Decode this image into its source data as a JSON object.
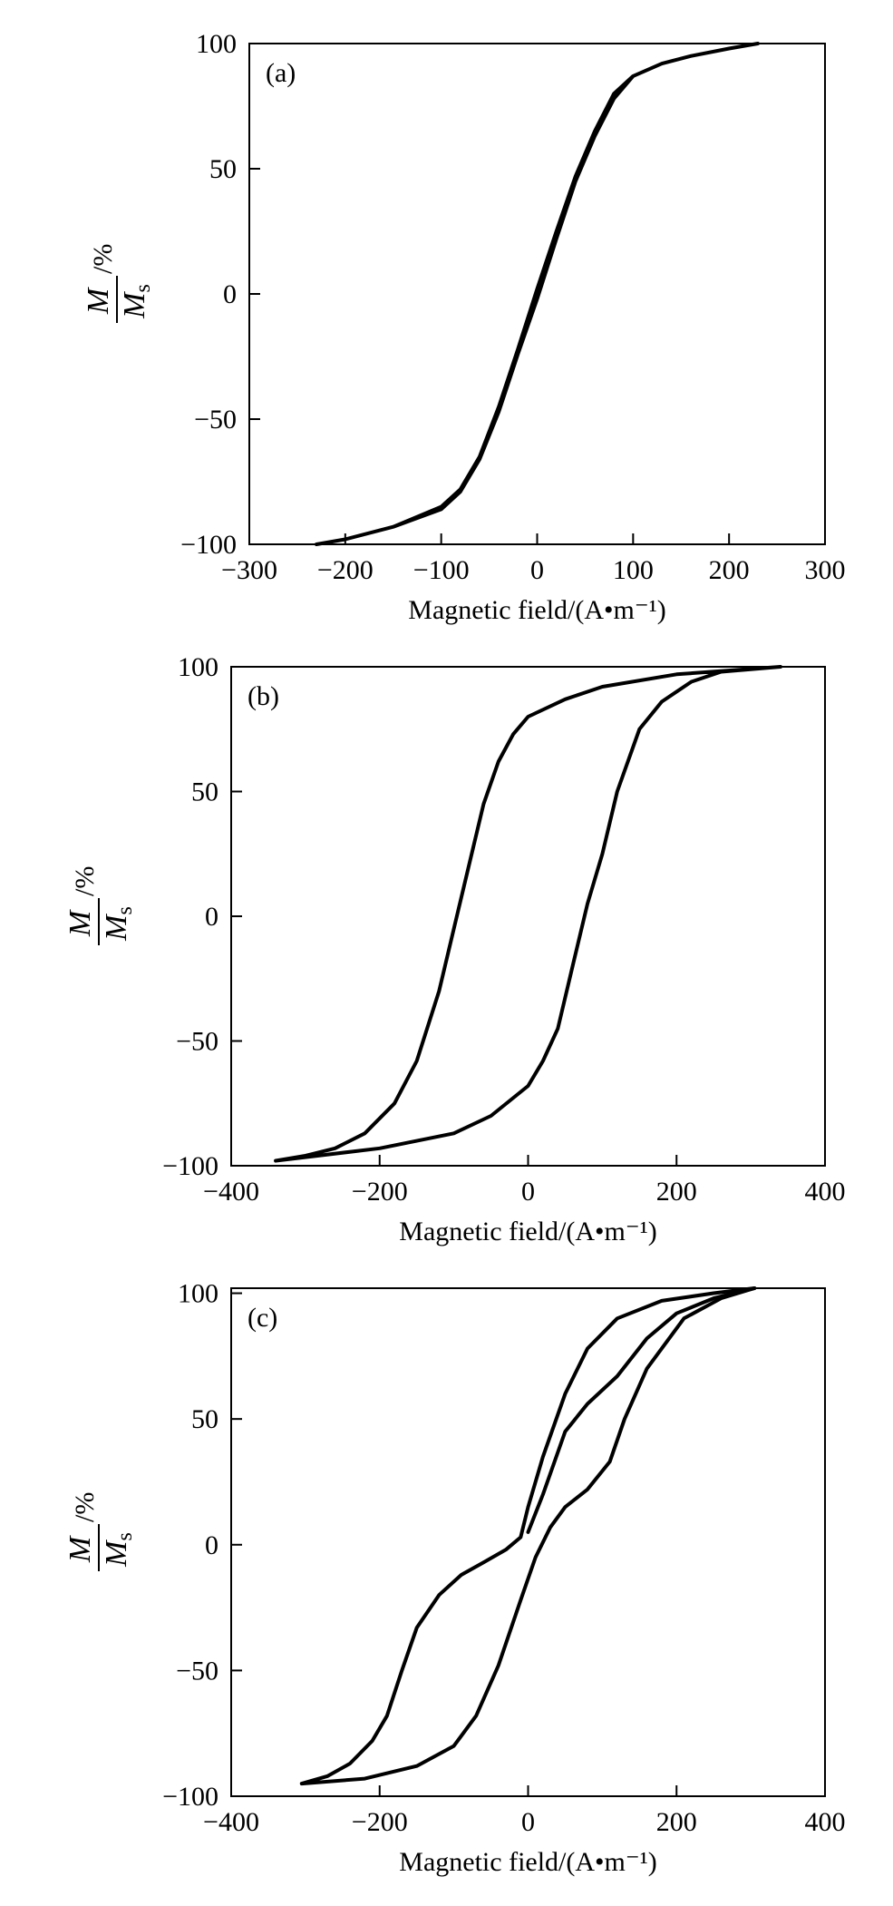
{
  "chart_data": [
    {
      "type": "line",
      "panel_label": "(a)",
      "xlabel": "Magnetic field/(A•m⁻¹)",
      "ylabel": "M/Ms /%",
      "xlim": [
        -300,
        300
      ],
      "ylim": [
        -100,
        100
      ],
      "x_ticks": [
        -300,
        -200,
        -100,
        0,
        100,
        200,
        300
      ],
      "y_ticks": [
        -100,
        -50,
        0,
        50,
        100
      ],
      "x_tick_labels": [
        "−300",
        "−200",
        "−100",
        "0",
        "100",
        "200",
        "300"
      ],
      "y_tick_labels": [
        "−100",
        "−50",
        "0",
        "50",
        "100"
      ],
      "grid": false,
      "series": [
        {
          "points": [
            [
              -230,
              -100
            ],
            [
              -200,
              -98
            ],
            [
              -150,
              -93
            ],
            [
              -100,
              -85
            ],
            [
              -80,
              -78
            ],
            [
              -60,
              -65
            ],
            [
              -40,
              -45
            ],
            [
              -20,
              -22
            ],
            [
              0,
              2
            ],
            [
              20,
              25
            ],
            [
              40,
              47
            ],
            [
              60,
              65
            ],
            [
              80,
              80
            ],
            [
              100,
              87
            ],
            [
              130,
              92
            ],
            [
              160,
              95
            ],
            [
              200,
              98
            ],
            [
              230,
              100
            ],
            [
              200,
              98
            ],
            [
              160,
              95
            ],
            [
              130,
              92
            ],
            [
              100,
              87
            ],
            [
              80,
              78
            ],
            [
              60,
              63
            ],
            [
              40,
              45
            ],
            [
              20,
              22
            ],
            [
              0,
              -2
            ],
            [
              -20,
              -24
            ],
            [
              -40,
              -47
            ],
            [
              -60,
              -66
            ],
            [
              -80,
              -79
            ],
            [
              -100,
              -86
            ],
            [
              -150,
              -93
            ],
            [
              -200,
              -98
            ],
            [
              -230,
              -100
            ]
          ]
        }
      ]
    },
    {
      "type": "line",
      "panel_label": "(b)",
      "xlabel": "Magnetic field/(A•m⁻¹)",
      "ylabel": "M/Ms /%",
      "xlim": [
        -400,
        400
      ],
      "ylim": [
        -100,
        100
      ],
      "x_ticks": [
        -400,
        -200,
        0,
        200,
        400
      ],
      "y_ticks": [
        -100,
        -50,
        0,
        50,
        100
      ],
      "x_tick_labels": [
        "−400",
        "−200",
        "0",
        "200",
        "400"
      ],
      "y_tick_labels": [
        "−100",
        "−50",
        "0",
        "50",
        "100"
      ],
      "grid": false,
      "series": [
        {
          "points": [
            [
              -340,
              -98
            ],
            [
              -300,
              -96
            ],
            [
              -260,
              -93
            ],
            [
              -220,
              -87
            ],
            [
              -180,
              -75
            ],
            [
              -150,
              -58
            ],
            [
              -120,
              -30
            ],
            [
              -100,
              -5
            ],
            [
              -80,
              20
            ],
            [
              -60,
              45
            ],
            [
              -40,
              62
            ],
            [
              -20,
              73
            ],
            [
              0,
              80
            ],
            [
              50,
              87
            ],
            [
              100,
              92
            ],
            [
              200,
              97
            ],
            [
              340,
              100
            ],
            [
              300,
              99
            ],
            [
              260,
              98
            ],
            [
              220,
              94
            ],
            [
              180,
              86
            ],
            [
              150,
              75
            ],
            [
              120,
              50
            ],
            [
              100,
              25
            ],
            [
              80,
              5
            ],
            [
              60,
              -20
            ],
            [
              40,
              -45
            ],
            [
              20,
              -58
            ],
            [
              0,
              -68
            ],
            [
              -50,
              -80
            ],
            [
              -100,
              -87
            ],
            [
              -200,
              -93
            ],
            [
              -340,
              -98
            ]
          ]
        }
      ]
    },
    {
      "type": "line",
      "panel_label": "(c)",
      "xlabel": "Magnetic field/(A•m⁻¹)",
      "ylabel": "M/Ms /%",
      "xlim": [
        -400,
        400
      ],
      "ylim": [
        -110,
        110
      ],
      "x_ticks": [
        -400,
        -200,
        0,
        200,
        400
      ],
      "y_ticks": [
        -100,
        -50,
        0,
        50,
        100
      ],
      "x_tick_labels": [
        "−400",
        "−200",
        "0",
        "200",
        "400"
      ],
      "y_tick_labels": [
        "−100",
        "−50",
        "0",
        "50",
        "100"
      ],
      "grid": false,
      "series": [
        {
          "points": [
            [
              -305,
              -95
            ],
            [
              -270,
              -92
            ],
            [
              -240,
              -87
            ],
            [
              -210,
              -78
            ],
            [
              -190,
              -68
            ],
            [
              -170,
              -50
            ],
            [
              -150,
              -33
            ],
            [
              -120,
              -20
            ],
            [
              -90,
              -12
            ],
            [
              -60,
              -7
            ],
            [
              -30,
              -2
            ],
            [
              -10,
              3
            ],
            [
              0,
              15
            ],
            [
              20,
              35
            ],
            [
              50,
              60
            ],
            [
              80,
              78
            ],
            [
              120,
              90
            ],
            [
              180,
              97
            ],
            [
              250,
              100
            ],
            [
              305,
              102
            ],
            [
              260,
              98
            ],
            [
              210,
              90
            ],
            [
              160,
              70
            ],
            [
              130,
              50
            ],
            [
              110,
              33
            ],
            [
              80,
              22
            ],
            [
              50,
              15
            ],
            [
              30,
              7
            ],
            [
              10,
              -5
            ],
            [
              -10,
              -22
            ],
            [
              -40,
              -48
            ],
            [
              -70,
              -68
            ],
            [
              -100,
              -80
            ],
            [
              -150,
              -88
            ],
            [
              -220,
              -93
            ],
            [
              -305,
              -95
            ]
          ]
        },
        {
          "points": [
            [
              0,
              5
            ],
            [
              20,
              20
            ],
            [
              50,
              45
            ],
            [
              80,
              56
            ],
            [
              120,
              67
            ],
            [
              160,
              82
            ],
            [
              200,
              92
            ],
            [
              250,
              98
            ],
            [
              305,
              102
            ]
          ]
        }
      ]
    }
  ]
}
